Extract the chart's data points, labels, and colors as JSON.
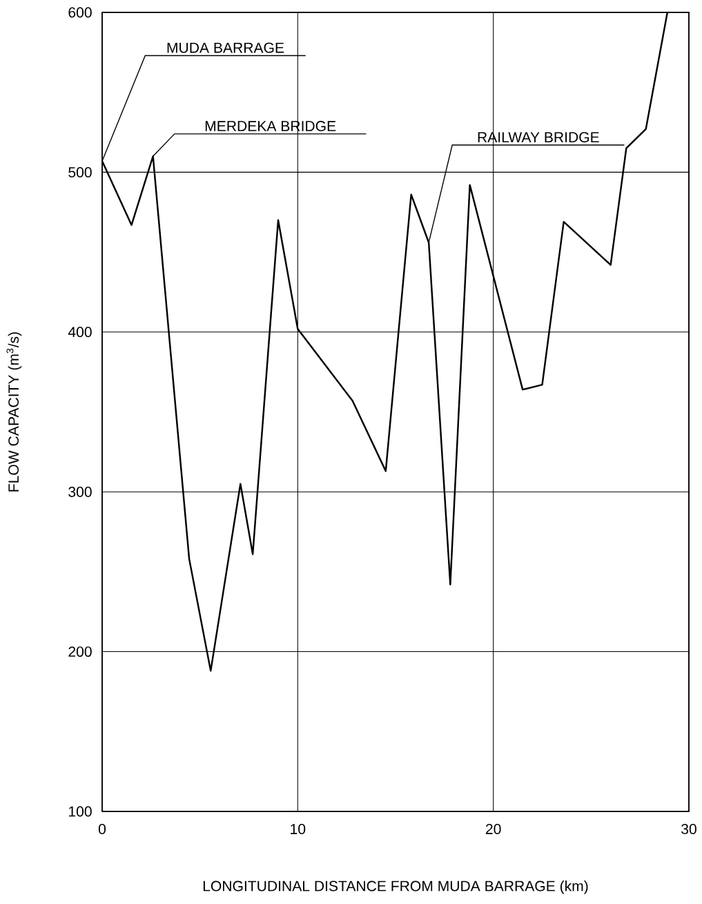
{
  "chart_data": {
    "type": "line",
    "xlabel": "LONGITUDINAL  DISTANCE  FROM  MUDA  BARRAGE     (km)",
    "ylabel": "FLOW  CAPACITY       (m$^{3}$/s)",
    "x": [
      0,
      1.5,
      2.6,
      4.45,
      5.55,
      7.07,
      7.7,
      9.0,
      10.0,
      12.8,
      14.5,
      15.8,
      16.7,
      17.8,
      18.8,
      21.5,
      22.5,
      23.6,
      26.0,
      26.8,
      27.8,
      28.9
    ],
    "series": [
      {
        "color": "#000000",
        "values": [
          507,
          467,
          510,
          258,
          188,
          305,
          261,
          470,
          402,
          357,
          313,
          486,
          456,
          242,
          492,
          364,
          367,
          469,
          442,
          515,
          527,
          600
        ]
      }
    ],
    "xlim": [
      0,
      30
    ],
    "ylim": [
      100,
      600
    ],
    "xticks": [
      0,
      10,
      20,
      30
    ],
    "yticks": [
      100,
      200,
      300,
      400,
      500,
      600
    ],
    "grid": true,
    "marker": "none",
    "line_style": "solid",
    "annotations": [
      {
        "text": "MUDA  BARRAGE",
        "x": 0,
        "y": 507
      },
      {
        "text": "MERDEKA  BRIDGE",
        "x": 2.6,
        "y": 510
      },
      {
        "text": "RAILWAY  BRIDGE",
        "x": 16.7,
        "y": 456
      }
    ]
  }
}
